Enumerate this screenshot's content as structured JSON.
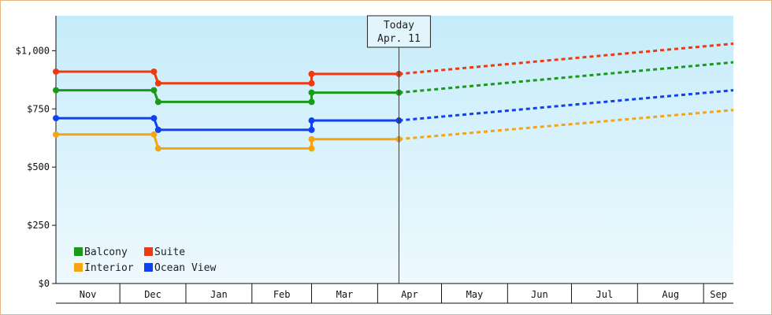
{
  "chart_data": {
    "type": "line",
    "y_ticks": [
      {
        "value": 0,
        "label": "$0"
      },
      {
        "value": 250,
        "label": "$250"
      },
      {
        "value": 500,
        "label": "$500"
      },
      {
        "value": 750,
        "label": "$750"
      },
      {
        "value": 1000,
        "label": "$1,000"
      }
    ],
    "ylim": [
      0,
      1150
    ],
    "months": [
      "Nov",
      "Dec",
      "Jan",
      "Feb",
      "Mar",
      "Apr",
      "May",
      "Jun",
      "Jul",
      "Aug",
      "Sep"
    ],
    "x_range": [
      "2024-11-01",
      "2025-09-15"
    ],
    "grid": false,
    "legend_position": "bottom-left",
    "today": {
      "line1": "Today",
      "line2": "Apr. 11",
      "date": "2025-04-11"
    },
    "series": [
      {
        "name": "Balcony",
        "color": "#1a9a1a",
        "points": [
          [
            "2024-11-01",
            830
          ],
          [
            "2024-12-17",
            830
          ],
          [
            "2024-12-19",
            780
          ],
          [
            "2025-03-01",
            780
          ],
          [
            "2025-03-01",
            820
          ],
          [
            "2025-04-11",
            820
          ]
        ],
        "projection": [
          [
            "2025-04-11",
            820
          ],
          [
            "2025-09-15",
            950
          ]
        ]
      },
      {
        "name": "Suite",
        "color": "#ee3a12",
        "points": [
          [
            "2024-11-01",
            910
          ],
          [
            "2024-12-17",
            910
          ],
          [
            "2024-12-19",
            860
          ],
          [
            "2025-03-01",
            860
          ],
          [
            "2025-03-01",
            900
          ],
          [
            "2025-04-11",
            900
          ]
        ],
        "projection": [
          [
            "2025-04-11",
            900
          ],
          [
            "2025-09-15",
            1030
          ]
        ]
      },
      {
        "name": "Interior",
        "color": "#f5a512",
        "points": [
          [
            "2024-11-01",
            640
          ],
          [
            "2024-12-17",
            640
          ],
          [
            "2024-12-19",
            580
          ],
          [
            "2025-03-01",
            580
          ],
          [
            "2025-03-01",
            620
          ],
          [
            "2025-04-11",
            620
          ]
        ],
        "projection": [
          [
            "2025-04-11",
            620
          ],
          [
            "2025-09-15",
            745
          ]
        ]
      },
      {
        "name": "Ocean View",
        "color": "#1040f0",
        "points": [
          [
            "2024-11-01",
            710
          ],
          [
            "2024-12-17",
            710
          ],
          [
            "2024-12-19",
            660
          ],
          [
            "2025-03-01",
            660
          ],
          [
            "2025-03-01",
            700
          ],
          [
            "2025-04-11",
            700
          ]
        ],
        "projection": [
          [
            "2025-04-11",
            700
          ],
          [
            "2025-09-15",
            830
          ]
        ]
      }
    ]
  }
}
